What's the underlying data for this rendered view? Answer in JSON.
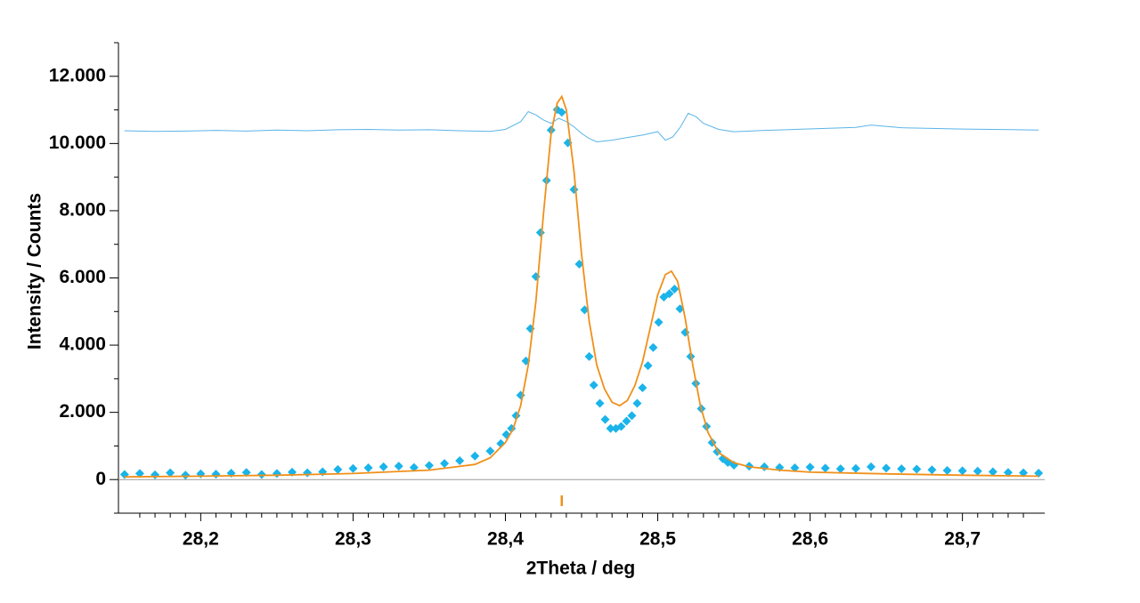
{
  "chart_data": {
    "type": "scatter",
    "x_label": "2Theta / deg",
    "y_label": "Intensity / Counts",
    "xlim": [
      28.146,
      28.754
    ],
    "ylim": [
      -1000,
      13000
    ],
    "xticks": [
      {
        "value": 28.2,
        "label": "28,2"
      },
      {
        "value": 28.3,
        "label": "28,3"
      },
      {
        "value": 28.4,
        "label": "28,4"
      },
      {
        "value": 28.5,
        "label": "28,5"
      },
      {
        "value": 28.6,
        "label": "28,6"
      },
      {
        "value": 28.7,
        "label": "28,7"
      }
    ],
    "yticks": [
      0,
      {
        "value": 2000,
        "label": "2.000"
      },
      {
        "value": 4000,
        "label": "4.000"
      },
      {
        "value": 6000,
        "label": "6.000"
      },
      {
        "value": 8000,
        "label": "8.000"
      },
      {
        "value": 10000,
        "label": "10.000"
      },
      {
        "value": 12000,
        "label": "12.000"
      }
    ],
    "minor_yticks": [
      -1000,
      1000,
      3000,
      5000,
      7000,
      9000,
      11000,
      13000
    ],
    "minor_xticks": [
      28.16,
      28.17,
      28.18,
      28.19,
      28.21,
      28.22,
      28.23,
      28.24,
      28.25,
      28.26,
      28.27,
      28.28,
      28.29,
      28.31,
      28.32,
      28.33,
      28.34,
      28.35,
      28.36,
      28.37,
      28.38,
      28.39,
      28.41,
      28.42,
      28.43,
      28.44,
      28.45,
      28.46,
      28.47,
      28.48,
      28.49,
      28.51,
      28.52,
      28.53,
      28.54,
      28.55,
      28.56,
      28.57,
      28.58,
      28.59,
      28.61,
      28.62,
      28.63,
      28.64,
      28.65,
      28.66,
      28.67,
      28.68,
      28.69,
      28.71,
      28.72,
      28.73,
      28.74
    ],
    "reflections": [
      28.437
    ],
    "reflection_color": "#f0901a",
    "series": [
      {
        "type": "line",
        "color": "#5ab4e8",
        "x": [
          28.15,
          28.17,
          28.19,
          28.21,
          28.23,
          28.25,
          28.27,
          28.29,
          28.31,
          28.33,
          28.35,
          28.37,
          28.39,
          28.4,
          28.41,
          28.415,
          28.42,
          28.425,
          28.43,
          28.435,
          28.44,
          28.445,
          28.45,
          28.455,
          28.46,
          28.47,
          28.48,
          28.49,
          28.5,
          28.505,
          28.51,
          28.515,
          28.52,
          28.525,
          28.53,
          28.54,
          28.55,
          28.57,
          28.59,
          28.61,
          28.63,
          28.64,
          28.66,
          28.68,
          28.7,
          28.72,
          28.75
        ],
        "values": [
          10380,
          10360,
          10370,
          10390,
          10370,
          10400,
          10380,
          10410,
          10420,
          10400,
          10410,
          10380,
          10360,
          10420,
          10650,
          10950,
          10850,
          10700,
          10600,
          10750,
          10650,
          10500,
          10300,
          10150,
          10050,
          10100,
          10180,
          10250,
          10350,
          10100,
          10200,
          10500,
          10900,
          10800,
          10600,
          10420,
          10350,
          10390,
          10420,
          10450,
          10480,
          10550,
          10470,
          10450,
          10430,
          10420,
          10400
        ]
      },
      {
        "type": "scatter",
        "color": "#1ab4ea",
        "x": [
          28.15,
          28.16,
          28.17,
          28.18,
          28.19,
          28.2,
          28.21,
          28.22,
          28.23,
          28.24,
          28.25,
          28.26,
          28.27,
          28.28,
          28.29,
          28.3,
          28.31,
          28.32,
          28.33,
          28.34,
          28.35,
          28.36,
          28.37,
          28.38,
          28.39,
          28.397,
          28.4006,
          28.404,
          28.407,
          28.41,
          28.4135,
          28.4164,
          28.42,
          28.423,
          28.427,
          28.43,
          28.434,
          28.437,
          28.441,
          28.445,
          28.4485,
          28.452,
          28.455,
          28.458,
          28.462,
          28.4655,
          28.469,
          28.4725,
          28.476,
          28.4795,
          28.483,
          28.4865,
          28.49,
          28.4936,
          28.497,
          28.5006,
          28.504,
          28.5076,
          28.511,
          28.5146,
          28.518,
          28.5216,
          28.525,
          28.5286,
          28.532,
          28.5357,
          28.539,
          28.5427,
          28.546,
          28.55,
          28.56,
          28.57,
          28.58,
          28.59,
          28.6,
          28.61,
          28.62,
          28.63,
          28.64,
          28.65,
          28.66,
          28.67,
          28.68,
          28.69,
          28.7,
          28.71,
          28.72,
          28.73,
          28.74,
          28.75
        ],
        "values": [
          150,
          180,
          140,
          200,
          130,
          170,
          160,
          190,
          210,
          150,
          180,
          220,
          200,
          230,
          300,
          330,
          350,
          380,
          400,
          360,
          420,
          480,
          560,
          700,
          850,
          1070,
          1340,
          1520,
          1900,
          2510,
          3530,
          4490,
          6040,
          7350,
          8900,
          10400,
          11010,
          10930,
          10020,
          8630,
          6410,
          5050,
          3660,
          2810,
          2270,
          1790,
          1520,
          1520,
          1580,
          1740,
          1900,
          2270,
          2730,
          3390,
          3930,
          4680,
          5430,
          5530,
          5670,
          5080,
          4380,
          3660,
          2860,
          2110,
          1580,
          1100,
          830,
          620,
          510,
          430,
          400,
          380,
          360,
          350,
          370,
          340,
          320,
          330,
          380,
          340,
          320,
          310,
          290,
          270,
          260,
          250,
          230,
          210,
          200,
          190
        ]
      },
      {
        "type": "line",
        "color": "#f0901a",
        "x": [
          28.15,
          28.2,
          28.25,
          28.3,
          28.35,
          28.38,
          28.39,
          28.4,
          28.405,
          28.41,
          28.415,
          28.42,
          28.425,
          28.43,
          28.434,
          28.437,
          28.44,
          28.445,
          28.45,
          28.455,
          28.46,
          28.465,
          28.47,
          28.475,
          28.48,
          28.485,
          28.49,
          28.495,
          28.5,
          28.505,
          28.509,
          28.513,
          28.518,
          28.523,
          28.528,
          28.533,
          28.54,
          28.55,
          28.56,
          28.58,
          28.6,
          28.65,
          28.7,
          28.75
        ],
        "values": [
          80,
          100,
          130,
          180,
          280,
          450,
          650,
          1100,
          1500,
          2200,
          3400,
          5300,
          7900,
          10300,
          11200,
          11400,
          11000,
          9200,
          6700,
          4700,
          3400,
          2700,
          2300,
          2200,
          2350,
          2800,
          3500,
          4500,
          5500,
          6100,
          6200,
          5900,
          4800,
          3400,
          2200,
          1400,
          800,
          500,
          380,
          280,
          220,
          170,
          130,
          100
        ]
      }
    ]
  }
}
